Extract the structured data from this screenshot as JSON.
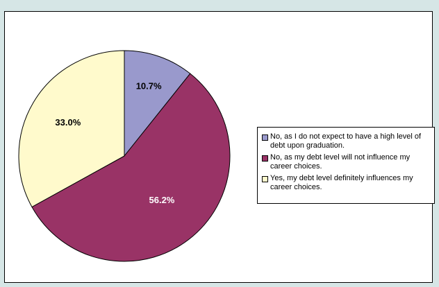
{
  "chart_data": {
    "type": "pie",
    "categories": [
      "No, as I do not expect to have a high level of debt upon graduation.",
      "No, as my debt level will not influence my career choices.",
      "Yes, my debt level definitely influences my career choices."
    ],
    "values": [
      10.7,
      56.2,
      33.0
    ],
    "value_labels": [
      "10.7%",
      "56.2%",
      "33.0%"
    ],
    "colors": [
      "#9999cc",
      "#993366",
      "#fffacc"
    ],
    "label_colors": [
      "#000000",
      "#ffffff",
      "#000000"
    ],
    "legend_position": "right",
    "start": "top, clockwise"
  }
}
